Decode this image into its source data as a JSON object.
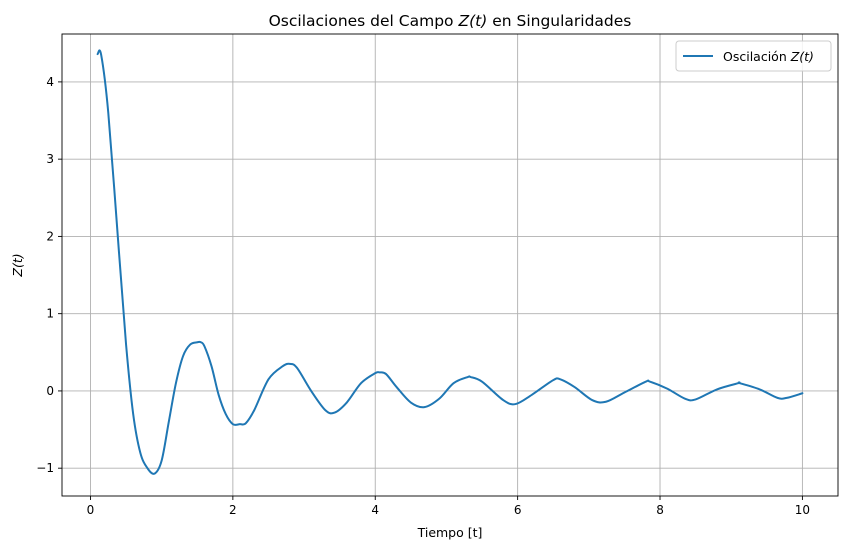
{
  "chart_data": {
    "type": "line",
    "title_parts": {
      "pre": "Oscilaciones del Campo ",
      "math": "Z(t)",
      "post": " en Singularidades"
    },
    "xlabel": "Tiempo [t]",
    "ylabel": "Z(t)",
    "xlim": [
      -0.4,
      10.5
    ],
    "ylim": [
      -1.36,
      4.62
    ],
    "xticks": [
      0,
      2,
      4,
      6,
      8,
      10
    ],
    "xtick_labels": [
      "0",
      "2",
      "4",
      "6",
      "8",
      "10"
    ],
    "yticks": [
      -1,
      0,
      1,
      2,
      3,
      4
    ],
    "ytick_labels": [
      "−1",
      "0",
      "1",
      "2",
      "3",
      "4"
    ],
    "grid": true,
    "legend_position": "top-right",
    "series": [
      {
        "name_parts": {
          "pre": "Oscilación ",
          "math": "Z(t)"
        },
        "color": "#1f77b4",
        "x": [
          0.1,
          0.15,
          0.25,
          0.4,
          0.5,
          0.6,
          0.7,
          0.8,
          0.9,
          1.0,
          1.1,
          1.2,
          1.3,
          1.4,
          1.5,
          1.55,
          1.6,
          1.7,
          1.8,
          1.9,
          2.0,
          2.1,
          2.18,
          2.3,
          2.5,
          2.7,
          2.8,
          2.9,
          3.1,
          3.3,
          3.43,
          3.6,
          3.8,
          4.0,
          4.06,
          4.15,
          4.3,
          4.5,
          4.69,
          4.9,
          5.1,
          5.3,
          5.34,
          5.5,
          5.8,
          5.97,
          6.2,
          6.5,
          6.6,
          6.8,
          7.05,
          7.24,
          7.5,
          7.8,
          7.86,
          8.1,
          8.35,
          8.5,
          8.8,
          9.1,
          9.12,
          9.4,
          9.65,
          9.78,
          10.0
        ],
        "y": [
          4.36,
          4.35,
          3.6,
          1.8,
          0.6,
          -0.3,
          -0.8,
          -1.0,
          -1.07,
          -0.9,
          -0.4,
          0.1,
          0.45,
          0.6,
          0.63,
          0.63,
          0.58,
          0.32,
          -0.05,
          -0.3,
          -0.43,
          -0.43,
          -0.42,
          -0.25,
          0.15,
          0.32,
          0.35,
          0.3,
          0.0,
          -0.25,
          -0.28,
          -0.15,
          0.1,
          0.23,
          0.24,
          0.22,
          0.05,
          -0.15,
          -0.21,
          -0.1,
          0.1,
          0.18,
          0.18,
          0.12,
          -0.12,
          -0.17,
          -0.05,
          0.14,
          0.15,
          0.05,
          -0.12,
          -0.14,
          -0.02,
          0.12,
          0.12,
          0.03,
          -0.1,
          -0.11,
          0.02,
          0.1,
          0.1,
          0.02,
          -0.09,
          -0.09,
          -0.03
        ]
      }
    ]
  }
}
